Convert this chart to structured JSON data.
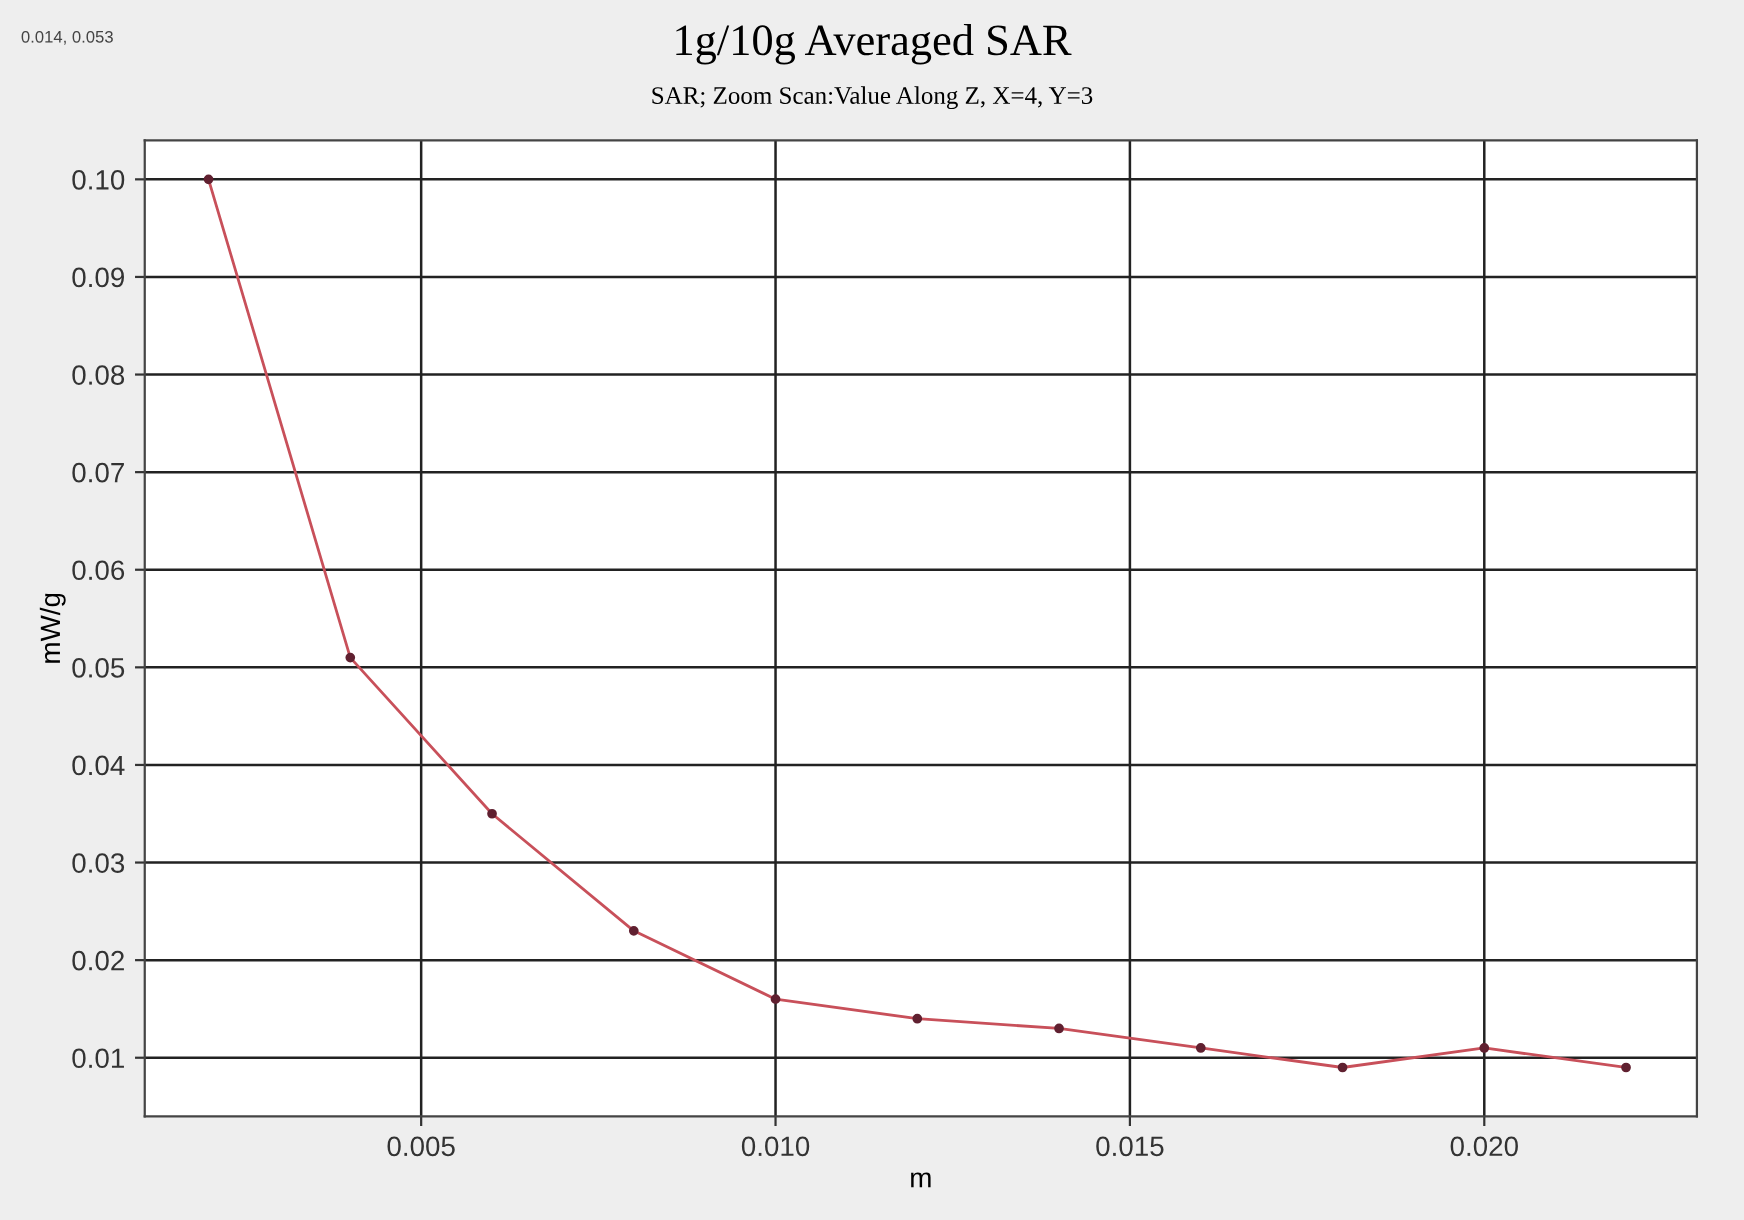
{
  "chart_data": {
    "type": "line",
    "title": "1g/10g Averaged SAR",
    "subtitle": "SAR; Zoom Scan:Value Along Z, X=4, Y=3",
    "xlabel": "m",
    "ylabel": "mW/g",
    "annotations": [
      "0.014, 0.053"
    ],
    "x": [
      0.002,
      0.004,
      0.006,
      0.008,
      0.01,
      0.012,
      0.014,
      0.016,
      0.018,
      0.02,
      0.022
    ],
    "series": [
      {
        "color": "#c8505a",
        "values": [
          0.1,
          0.051,
          0.035,
          0.023,
          0.016,
          0.014,
          0.013,
          0.011,
          0.009,
          0.011,
          0.009
        ]
      }
    ],
    "xlim": [
      0.0011,
      0.023
    ],
    "ylim": [
      0.004,
      0.104
    ],
    "xticks": [
      {
        "value": 0.005,
        "label": "0.005"
      },
      {
        "value": 0.01,
        "label": "0.010"
      },
      {
        "value": 0.015,
        "label": "0.015"
      },
      {
        "value": 0.02,
        "label": "0.020"
      }
    ],
    "yticks": [
      {
        "value": 0.01,
        "label": "0.01"
      },
      {
        "value": 0.02,
        "label": "0.02"
      },
      {
        "value": 0.03,
        "label": "0.03"
      },
      {
        "value": 0.04,
        "label": "0.04"
      },
      {
        "value": 0.05,
        "label": "0.05"
      },
      {
        "value": 0.06,
        "label": "0.06"
      },
      {
        "value": 0.07,
        "label": "0.07"
      },
      {
        "value": 0.08,
        "label": "0.08"
      },
      {
        "value": 0.09,
        "label": "0.09"
      },
      {
        "value": 0.1,
        "label": "0.10"
      }
    ],
    "grid": true,
    "marker": "circle",
    "line_style": "solid"
  }
}
